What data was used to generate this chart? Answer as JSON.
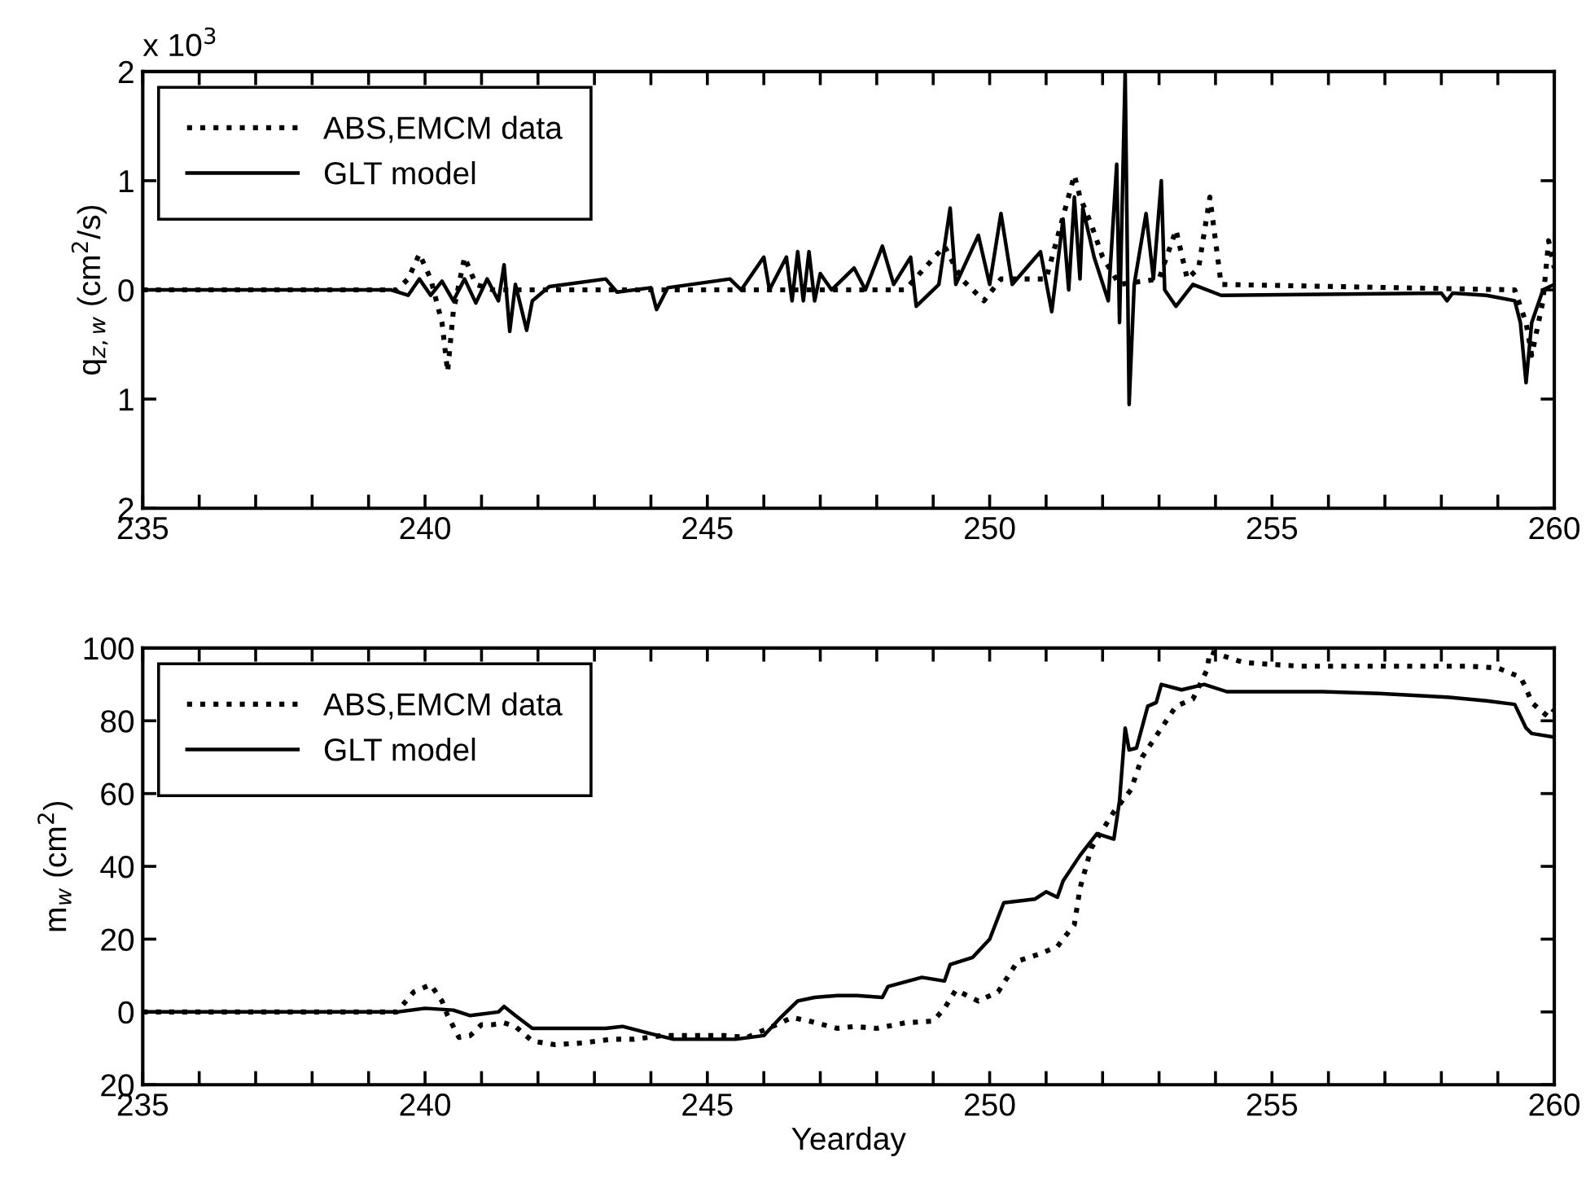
{
  "chart_data": [
    {
      "type": "line",
      "ylabel": "q$_{z,w}$ (cm$^{2}$/s)",
      "annotations": [
        "x 10$^{3}$"
      ],
      "xlim": [
        235,
        260
      ],
      "xticks": [
        235,
        {
          "value": 236,
          "label": null
        },
        {
          "value": 237,
          "label": null
        },
        {
          "value": 238,
          "label": null
        },
        {
          "value": 239,
          "label": null
        },
        240,
        {
          "value": 241,
          "label": null
        },
        {
          "value": 242,
          "label": null
        },
        {
          "value": 243,
          "label": null
        },
        {
          "value": 244,
          "label": null
        },
        245,
        {
          "value": 246,
          "label": null
        },
        {
          "value": 247,
          "label": null
        },
        {
          "value": 248,
          "label": null
        },
        {
          "value": 249,
          "label": null
        },
        250,
        {
          "value": 251,
          "label": null
        },
        {
          "value": 252,
          "label": null
        },
        {
          "value": 253,
          "label": null
        },
        {
          "value": 254,
          "label": null
        },
        255,
        {
          "value": 256,
          "label": null
        },
        {
          "value": 257,
          "label": null
        },
        {
          "value": 258,
          "label": null
        },
        {
          "value": 259,
          "label": null
        },
        260
      ],
      "ylim": [
        -2,
        2
      ],
      "yticks": [
        {
          "value": -2,
          "label": "2"
        },
        {
          "value": -1,
          "label": "1"
        },
        0,
        1,
        2
      ],
      "legend": "top left",
      "grid": false,
      "series": [
        {
          "name": "ABS,EMCM data",
          "color": "#000000",
          "line_style": "dotted",
          "x": [
            235,
            239.5,
            239.7,
            239.9,
            240.1,
            240.3,
            240.4,
            240.5,
            240.7,
            240.9,
            241.2,
            244,
            248.5,
            249.2,
            249.5,
            249.9,
            250.2,
            251.0,
            251.5,
            251.6,
            251.8,
            252.0,
            252.3,
            253.0,
            253.3,
            253.5,
            253.7,
            253.9,
            254.1,
            259.3,
            259.5,
            259.6,
            259.8,
            259.9,
            260
          ],
          "values": [
            0,
            0,
            0.1,
            0.33,
            0.1,
            -0.3,
            -0.75,
            -0.2,
            0.3,
            0.05,
            0,
            0,
            0,
            0.4,
            0.1,
            -0.1,
            0.1,
            0.1,
            1.05,
            0.85,
            0.6,
            0.3,
            0.05,
            0.1,
            0.55,
            0.1,
            0.2,
            0.85,
            0.05,
            0,
            -0.3,
            -0.6,
            -0.1,
            0.45,
            0.2
          ]
        },
        {
          "name": "GLT model",
          "color": "#000000",
          "line_style": "solid",
          "x": [
            235,
            239.4,
            239.7,
            239.9,
            240.1,
            240.3,
            240.5,
            240.7,
            240.9,
            241.1,
            241.3,
            241.4,
            241.5,
            241.6,
            241.8,
            241.9,
            242.2,
            243.2,
            243.4,
            244.0,
            244.1,
            244.3,
            245.4,
            245.6,
            246.0,
            246.1,
            246.4,
            246.5,
            246.6,
            246.7,
            246.8,
            246.9,
            247.0,
            247.2,
            247.6,
            247.8,
            248.1,
            248.3,
            248.6,
            248.7,
            249.1,
            249.3,
            249.4,
            249.8,
            250.0,
            250.2,
            250.4,
            250.9,
            251.1,
            251.3,
            251.4,
            251.5,
            251.6,
            251.65,
            251.85,
            252.1,
            252.25,
            252.3,
            252.4,
            252.47,
            252.56,
            252.77,
            252.9,
            253.04,
            253.1,
            253.3,
            253.6,
            254.1,
            258.0,
            258.1,
            258.2,
            258.8,
            259.3,
            259.4,
            259.5,
            259.6,
            259.8,
            260
          ],
          "values": [
            0,
            0,
            -0.05,
            0.1,
            -0.05,
            0.08,
            -0.1,
            0.1,
            -0.12,
            0.1,
            -0.1,
            0.23,
            -0.38,
            0.05,
            -0.37,
            -0.1,
            0.03,
            0.1,
            -0.02,
            0.02,
            -0.18,
            0.02,
            0.1,
            0,
            0.3,
            0.0,
            0.3,
            -0.1,
            0.35,
            -0.1,
            0.35,
            -0.1,
            0.15,
            0,
            0.2,
            0,
            0.4,
            0.05,
            0.3,
            -0.15,
            0.05,
            0.75,
            0.05,
            0.5,
            0.05,
            0.7,
            0.05,
            0.35,
            -0.2,
            0.65,
            0.0,
            0.85,
            0.1,
            0.75,
            0.3,
            -0.1,
            1.15,
            -0.3,
            2.0,
            -1.05,
            0.05,
            0.7,
            0.1,
            1.0,
            0.0,
            -0.15,
            0.05,
            -0.05,
            -0.03,
            -0.1,
            -0.03,
            -0.05,
            -0.1,
            -0.3,
            -0.85,
            -0.3,
            0.0,
            0.05
          ]
        }
      ]
    },
    {
      "type": "line",
      "xlabel": "Yearday",
      "ylabel": "m$_{w}$ (cm$^{2}$)",
      "xlim": [
        235,
        260
      ],
      "xticks": [
        235,
        {
          "value": 236,
          "label": null
        },
        {
          "value": 237,
          "label": null
        },
        {
          "value": 238,
          "label": null
        },
        {
          "value": 239,
          "label": null
        },
        240,
        {
          "value": 241,
          "label": null
        },
        {
          "value": 242,
          "label": null
        },
        {
          "value": 243,
          "label": null
        },
        {
          "value": 244,
          "label": null
        },
        245,
        {
          "value": 246,
          "label": null
        },
        {
          "value": 247,
          "label": null
        },
        {
          "value": 248,
          "label": null
        },
        {
          "value": 249,
          "label": null
        },
        250,
        {
          "value": 251,
          "label": null
        },
        {
          "value": 252,
          "label": null
        },
        {
          "value": 253,
          "label": null
        },
        {
          "value": 254,
          "label": null
        },
        255,
        {
          "value": 256,
          "label": null
        },
        {
          "value": 257,
          "label": null
        },
        {
          "value": 258,
          "label": null
        },
        {
          "value": 259,
          "label": null
        },
        260
      ],
      "ylim": [
        -20,
        100
      ],
      "yticks": [
        {
          "value": -20,
          "label": "20"
        },
        0,
        20,
        40,
        60,
        80,
        100
      ],
      "legend": "top left",
      "grid": false,
      "series": [
        {
          "name": "ABS,EMCM data",
          "color": "#000000",
          "line_style": "dotted",
          "x": [
            235,
            239.5,
            239.8,
            240.1,
            240.3,
            240.4,
            240.6,
            240.8,
            241.0,
            241.2,
            241.4,
            241.6,
            241.9,
            242.3,
            242.8,
            243.3,
            243.7,
            244.2,
            244.8,
            245.3,
            245.7,
            246.0,
            246.3,
            246.5,
            246.8,
            247.3,
            247.6,
            248.0,
            248.5,
            249.0,
            249.2,
            249.4,
            249.8,
            250.15,
            250.5,
            250.9,
            251.2,
            251.5,
            251.6,
            251.8,
            252.2,
            252.5,
            252.7,
            253.0,
            253.3,
            253.6,
            253.85,
            253.9,
            254.5,
            255.5,
            256.5,
            257.5,
            258.5,
            259.0,
            259.4,
            259.5,
            259.6,
            259.9,
            260
          ],
          "values": [
            0,
            0,
            5.5,
            7.5,
            3,
            -1,
            -7,
            -6.5,
            -3.5,
            -3.5,
            -3,
            -4,
            -8,
            -9,
            -8.5,
            -7.5,
            -7.5,
            -6.5,
            -6.5,
            -6.5,
            -7,
            -5,
            -3,
            -1.5,
            -2.5,
            -4.5,
            -4,
            -4.5,
            -3,
            -2.5,
            1,
            6,
            3,
            5.5,
            14,
            16,
            18,
            24,
            34,
            45,
            55,
            61,
            70,
            77,
            84,
            86,
            94,
            99,
            96,
            95,
            95,
            95,
            95,
            94.5,
            92,
            89,
            85,
            81,
            83
          ]
        },
        {
          "name": "GLT model",
          "color": "#000000",
          "line_style": "solid",
          "x": [
            235,
            239.5,
            240.0,
            240.5,
            240.8,
            241.3,
            241.4,
            241.6,
            241.9,
            242.5,
            243.2,
            243.5,
            244.0,
            244.4,
            245.0,
            245.5,
            246.0,
            246.3,
            246.6,
            246.9,
            247.3,
            247.65,
            248.1,
            248.2,
            248.8,
            249.2,
            249.3,
            249.7,
            250.0,
            250.25,
            250.8,
            251.0,
            251.2,
            251.3,
            251.6,
            251.9,
            252.2,
            252.3,
            252.4,
            252.47,
            252.6,
            252.8,
            252.95,
            253.04,
            253.4,
            253.8,
            254.2,
            255.9,
            256.9,
            258.1,
            258.8,
            259.3,
            259.5,
            259.6,
            260
          ],
          "values": [
            0,
            0,
            1,
            0.5,
            -1,
            0,
            1.5,
            -1,
            -4.5,
            -4.5,
            -4.5,
            -4,
            -6,
            -7.5,
            -7.5,
            -7.5,
            -6.5,
            -1.5,
            3,
            4,
            4.5,
            4.5,
            4,
            7,
            9.5,
            8.5,
            13,
            15,
            20,
            30,
            31,
            33,
            31.5,
            36,
            43,
            49,
            47.5,
            58,
            78,
            72,
            72.5,
            84,
            85,
            90,
            88.5,
            90,
            88,
            88,
            87.5,
            86.5,
            85.5,
            84.5,
            78,
            76.5,
            75.5
          ]
        }
      ]
    }
  ]
}
